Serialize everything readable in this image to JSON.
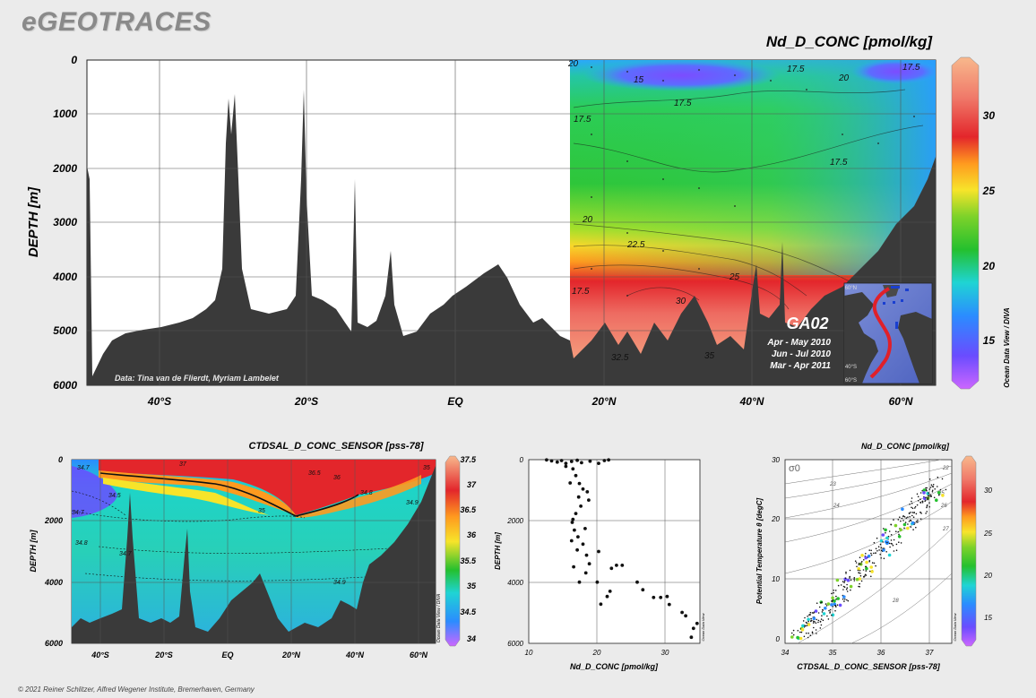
{
  "header": {
    "brand": "eGEOTRACES"
  },
  "footer": {
    "copyright": "© 2021 Reiner Schlitzer, Alfred Wegener Institute, Bremerhaven, Germany"
  },
  "chart_data": [
    {
      "type": "heatmap",
      "title": "Nd_D_CONC [pmol/kg]",
      "ylabel": "DEPTH [m]",
      "x_ticks": [
        "40°S",
        "20°S",
        "EQ",
        "20°N",
        "40°N",
        "60°N"
      ],
      "y_ticks": [
        "0",
        "1000",
        "2000",
        "3000",
        "4000",
        "5000",
        "6000"
      ],
      "ylim": [
        6000,
        0
      ],
      "colorbar": {
        "ticks": [
          "30",
          "25",
          "20",
          "15"
        ],
        "range": [
          12,
          34
        ],
        "label": "Ocean Data View / DIVA"
      },
      "contour_labels": [
        "20",
        "15",
        "17.5",
        "20",
        "17.5",
        "17.5",
        "17.5",
        "17.5",
        "20",
        "22.5",
        "25",
        "17.5",
        "30",
        "32.5",
        "35"
      ],
      "credit": "Data: Tina van de Flierdt, Myriam Lambelet",
      "section": {
        "name": "GA02",
        "cruises": [
          "Apr - May 2010",
          "Jun - Jul 2010",
          "Mar - Apr 2011"
        ],
        "inset_ticks": [
          "60°N",
          "40°S",
          "60°S"
        ]
      }
    },
    {
      "type": "heatmap",
      "title": "CTDSAL_D_CONC_SENSOR [pss-78]",
      "ylabel": "DEPTH [m]",
      "x_ticks": [
        "40°S",
        "20°S",
        "EQ",
        "20°N",
        "40°N",
        "60°N"
      ],
      "y_ticks": [
        "0",
        "2000",
        "4000",
        "6000"
      ],
      "ylim": [
        6000,
        0
      ],
      "colorbar": {
        "ticks": [
          "37.5",
          "37",
          "36.5",
          "36",
          "35.5",
          "35",
          "34.5",
          "34"
        ],
        "range": [
          34,
          37.5
        ],
        "label": "Ocean Data View / DIVA"
      },
      "contour_labels": [
        "34.5",
        "34.7",
        "37",
        "36.5",
        "36",
        "34.8",
        "34.9",
        "35",
        "34.8",
        "34.9",
        "34.7",
        "35",
        "34.7"
      ]
    },
    {
      "type": "scatter",
      "xlabel": "Nd_D_CONC [pmol/kg]",
      "ylabel": "DEPTH [m]",
      "x_ticks": [
        "10",
        "20",
        "30"
      ],
      "y_ticks": [
        "0",
        "2000",
        "4000",
        "6000"
      ],
      "xlim": [
        10,
        34
      ],
      "ylim": [
        6000,
        0
      ],
      "watermark": "Ocean Data View",
      "points": [
        [
          12.5,
          10
        ],
        [
          13.2,
          40
        ],
        [
          14,
          80
        ],
        [
          14.6,
          30
        ],
        [
          15.2,
          120
        ],
        [
          16,
          60
        ],
        [
          16.8,
          20
        ],
        [
          17.4,
          100
        ],
        [
          18.6,
          50
        ],
        [
          19.8,
          120
        ],
        [
          20.6,
          30
        ],
        [
          21.2,
          10
        ],
        [
          16.2,
          300
        ],
        [
          16.6,
          520
        ],
        [
          17.1,
          780
        ],
        [
          17.6,
          960
        ],
        [
          18.2,
          1050
        ],
        [
          18.4,
          1320
        ],
        [
          17.3,
          1520
        ],
        [
          16.6,
          1760
        ],
        [
          16.1,
          2050
        ],
        [
          16.4,
          2300
        ],
        [
          16.9,
          2520
        ],
        [
          17.6,
          2760
        ],
        [
          16.8,
          2950
        ],
        [
          18.1,
          3120
        ],
        [
          18.5,
          3400
        ],
        [
          18,
          3700
        ],
        [
          17.1,
          4000
        ],
        [
          15.2,
          220
        ],
        [
          15.8,
          760
        ],
        [
          17,
          1220
        ],
        [
          16.2,
          1950
        ],
        [
          17.9,
          2250
        ],
        [
          16,
          2650
        ],
        [
          16.3,
          3500
        ],
        [
          19.8,
          3000
        ],
        [
          21.6,
          3550
        ],
        [
          22.3,
          3450
        ],
        [
          23.1,
          3450
        ],
        [
          19.6,
          4000
        ],
        [
          21.4,
          4300
        ],
        [
          21,
          4470
        ],
        [
          20.1,
          4720
        ],
        [
          25.2,
          4000
        ],
        [
          26,
          4250
        ],
        [
          27.5,
          4500
        ],
        [
          28.5,
          4500
        ],
        [
          29.4,
          4470
        ],
        [
          29.7,
          4730
        ],
        [
          31.5,
          4990
        ],
        [
          32,
          5100
        ],
        [
          33.6,
          5350
        ],
        [
          33.1,
          5510
        ],
        [
          32.8,
          5800
        ]
      ]
    },
    {
      "type": "scatter",
      "title": "Nd_D_CONC [pmol/kg]",
      "xlabel": "CTDSAL_D_CONC_SENSOR [pss-78]",
      "ylabel": "Potential Temperature θ [degC]",
      "x_ticks": [
        "34",
        "35",
        "36",
        "37"
      ],
      "y_ticks": [
        "0",
        "10",
        "20",
        "30"
      ],
      "xlim": [
        33.9,
        37.5
      ],
      "ylim": [
        -0.5,
        30
      ],
      "sigma_label": "σ0",
      "isopycnal_labels": [
        "22",
        "23",
        "24",
        "25",
        "26",
        "27",
        "28"
      ],
      "colorbar": {
        "ticks": [
          "30",
          "25",
          "20",
          "15"
        ],
        "range": [
          12,
          34
        ],
        "label": "Ocean Data View"
      }
    }
  ],
  "colors": {
    "page_bg": "#ebebeb",
    "bathymetry": "#3a3a3a",
    "section_track": "#e0202a",
    "station_marker": "#1a3fd0",
    "colorbar_stops": [
      "#cc66ff",
      "#6a4cff",
      "#2b8cff",
      "#1fd4d4",
      "#24c02e",
      "#7dd22a",
      "#f7e42a",
      "#ff9a1f",
      "#e3262b",
      "#f07a6a",
      "#f8b88c"
    ]
  }
}
